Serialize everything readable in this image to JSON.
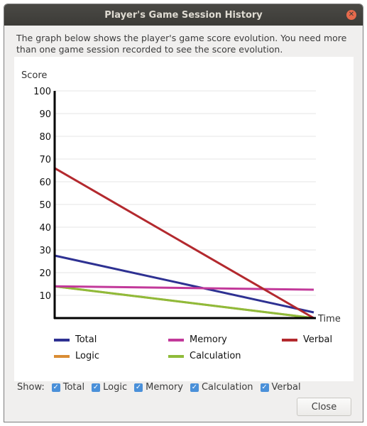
{
  "window": {
    "title": "Player's Game Session History"
  },
  "description": "The graph below shows the player's game score evolution. You need more than one game session recorded to see the score evolution.",
  "chart_data": {
    "type": "line",
    "ylabel": "Score",
    "xlabel": "Time",
    "yticks": [
      10,
      20,
      30,
      40,
      50,
      60,
      70,
      80,
      90,
      100
    ],
    "ylim": [
      0,
      100
    ],
    "x": [
      1,
      2
    ],
    "series": [
      {
        "name": "Total",
        "color": "#2e3192",
        "values": [
          27.5,
          2.5
        ]
      },
      {
        "name": "Memory",
        "color": "#c2399a",
        "values": [
          14,
          12.5
        ]
      },
      {
        "name": "Verbal",
        "color": "#b3292e",
        "values": [
          66,
          0
        ]
      },
      {
        "name": "Logic",
        "color": "#d98c34",
        "values": [
          14,
          0
        ]
      },
      {
        "name": "Calculation",
        "color": "#8fbb3a",
        "values": [
          14,
          0
        ]
      }
    ]
  },
  "showbar": {
    "label": "Show:",
    "options": [
      {
        "label": "Total",
        "checked": true
      },
      {
        "label": "Logic",
        "checked": true
      },
      {
        "label": "Memory",
        "checked": true
      },
      {
        "label": "Calculation",
        "checked": true
      },
      {
        "label": "Verbal",
        "checked": true
      }
    ]
  },
  "buttons": {
    "close": "Close"
  }
}
